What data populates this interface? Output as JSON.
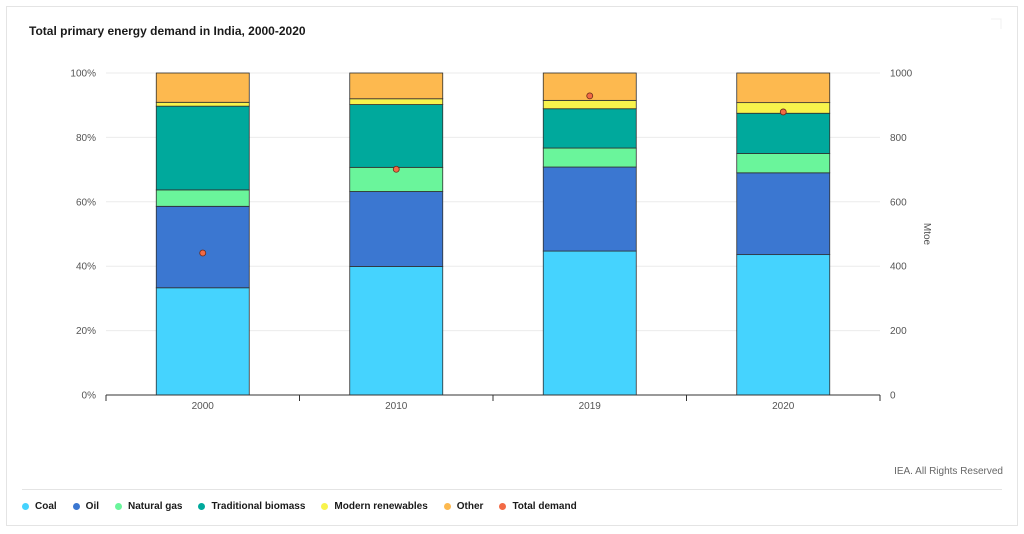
{
  "chart_data": {
    "type": "bar",
    "stacked": true,
    "normalized": true,
    "title": "Total primary energy demand in India, 2000-2020",
    "categories": [
      "2000",
      "2010",
      "2019",
      "2020"
    ],
    "series": [
      {
        "name": "Coal",
        "color": "#45d3fe",
        "values": [
          33.3,
          39.9,
          44.7,
          43.6
        ]
      },
      {
        "name": "Oil",
        "color": "#3b77d1",
        "values": [
          25.3,
          23.3,
          26.1,
          25.4
        ]
      },
      {
        "name": "Natural gas",
        "color": "#6af59b",
        "values": [
          5.1,
          7.5,
          5.9,
          6.0
        ]
      },
      {
        "name": "Traditional biomass",
        "color": "#00a99c",
        "values": [
          26.0,
          19.5,
          12.2,
          12.5
        ]
      },
      {
        "name": "Modern renewables",
        "color": "#f8f34c",
        "values": [
          1.2,
          1.8,
          2.6,
          3.3
        ]
      },
      {
        "name": "Other",
        "color": "#fdb94f",
        "values": [
          9.1,
          8.0,
          8.5,
          9.2
        ]
      }
    ],
    "total_demand": {
      "name": "Total demand",
      "color": "#f26a45",
      "values": [
        441,
        701,
        929,
        879
      ],
      "unit": "Mtoe"
    },
    "y_left": {
      "ticks": [
        "0%",
        "20%",
        "40%",
        "60%",
        "80%",
        "100%"
      ],
      "ylim": [
        0,
        100
      ]
    },
    "y_right": {
      "label": "Mtoe",
      "ticks": [
        "0",
        "200",
        "400",
        "600",
        "800",
        "1000"
      ],
      "ylim": [
        0,
        1000
      ]
    },
    "grid": true,
    "legend_position": "bottom-left"
  },
  "footer": {
    "credit": "IEA. All Rights Reserved"
  }
}
